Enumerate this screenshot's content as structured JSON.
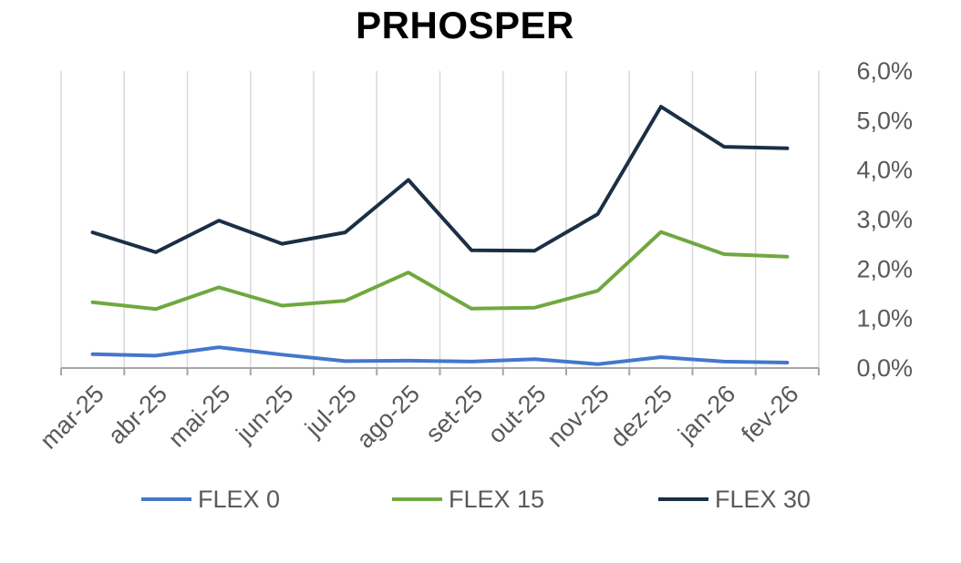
{
  "chart_data": {
    "type": "line",
    "title": "PRHOSPER",
    "categories": [
      "mar-25",
      "abr-25",
      "mai-25",
      "jun-25",
      "jul-25",
      "ago-25",
      "set-25",
      "out-25",
      "nov-25",
      "dez-25",
      "jan-26",
      "fev-26"
    ],
    "ylim": [
      0,
      6
    ],
    "yticks": [
      "0,0%",
      "1,0%",
      "2,0%",
      "3,0%",
      "4,0%",
      "5,0%",
      "6,0%"
    ],
    "y_axis_position": "right",
    "grid": "vertical",
    "legend": "bottom",
    "series": [
      {
        "name": "FLEX 0",
        "color": "#4477cc",
        "values": [
          0.28,
          0.25,
          0.42,
          0.27,
          0.14,
          0.15,
          0.13,
          0.18,
          0.08,
          0.22,
          0.13,
          0.11
        ]
      },
      {
        "name": "FLEX 15",
        "color": "#70a840",
        "values": [
          1.33,
          1.19,
          1.63,
          1.26,
          1.36,
          1.93,
          1.2,
          1.22,
          1.56,
          2.75,
          2.3,
          2.25
        ]
      },
      {
        "name": "FLEX 30",
        "color": "#1b2f45",
        "values": [
          2.74,
          2.34,
          2.98,
          2.51,
          2.74,
          3.8,
          2.38,
          2.37,
          3.11,
          5.28,
          4.47,
          4.44
        ]
      }
    ]
  }
}
